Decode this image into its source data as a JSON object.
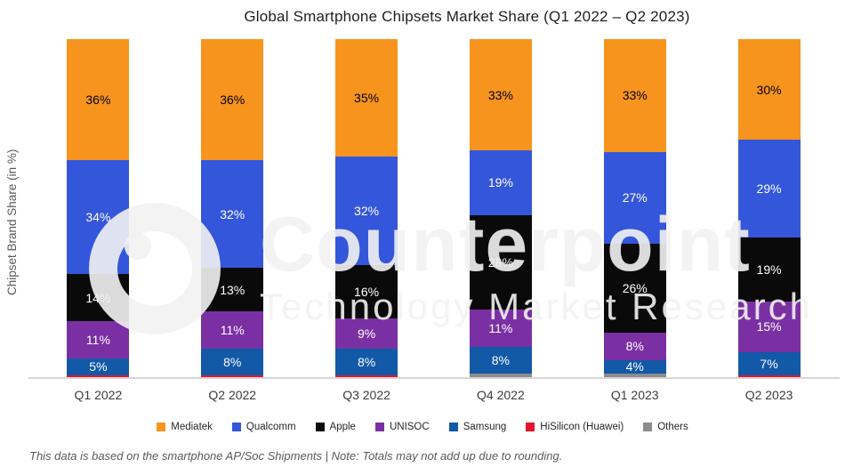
{
  "title": "Global Smartphone Chipsets Market Share (Q1 2022 – Q2 2023)",
  "y_axis_label": "Chipset Brand Share (in %)",
  "footnote": "This data is based on the smartphone AP/Soc Shipments | Note: Totals may not add up due to rounding.",
  "watermark": {
    "line1": "Counterpoint",
    "line2": "Technology Market Research"
  },
  "chart_data": {
    "type": "bar",
    "stacked": true,
    "title": "Global Smartphone Chipsets Market Share (Q1 2022 – Q2 2023)",
    "xlabel": "",
    "ylabel": "Chipset Brand Share (in %)",
    "ylim": [
      0,
      100
    ],
    "grid": false,
    "legend_position": "bottom",
    "label_min_value": 3,
    "categories": [
      "Q1 2022",
      "Q2 2022",
      "Q3 2022",
      "Q4 2022",
      "Q1 2023",
      "Q2 2023"
    ],
    "series": [
      {
        "name": "Mediatek",
        "color": "#F7941E",
        "label_color": "#000000",
        "values": [
          36,
          36,
          35,
          33,
          33,
          30
        ]
      },
      {
        "name": "Qualcomm",
        "color": "#3456DB",
        "label_color": "#ffffff",
        "values": [
          34,
          32,
          32,
          19,
          27,
          29
        ]
      },
      {
        "name": "Apple",
        "color": "#0A0A0A",
        "label_color": "#ffffff",
        "values": [
          14,
          13,
          16,
          28,
          26,
          19
        ]
      },
      {
        "name": "UNISOC",
        "color": "#7A30A2",
        "label_color": "#ffffff",
        "values": [
          11,
          11,
          9,
          11,
          8,
          15
        ]
      },
      {
        "name": "Samsung",
        "color": "#1259A7",
        "label_color": "#ffffff",
        "values": [
          5,
          8,
          8,
          8,
          4,
          7
        ]
      },
      {
        "name": "HiSilicon (Huawei)",
        "color": "#E4152B",
        "label_color": "#ffffff",
        "values": [
          0.6,
          0.5,
          0.4,
          0,
          0,
          0.5
        ]
      },
      {
        "name": "Others",
        "color": "#8C8C8C",
        "label_color": "#ffffff",
        "values": [
          0,
          0,
          0,
          1,
          1,
          0
        ]
      }
    ]
  }
}
